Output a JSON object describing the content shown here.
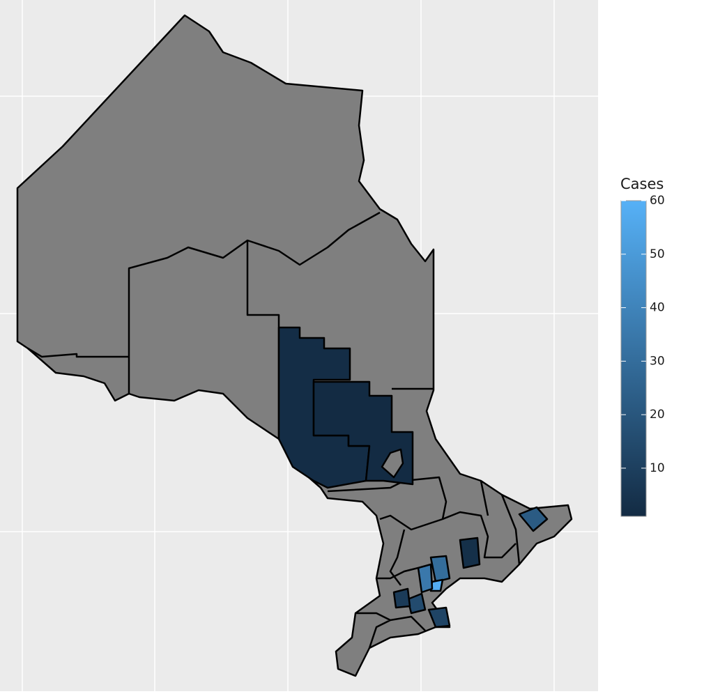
{
  "chart_data": {
    "type": "choropleth",
    "legend_title": "Cases",
    "clim": [
      1,
      60
    ],
    "cticks": [
      10,
      20,
      30,
      40,
      50,
      60
    ],
    "colorscale": [
      "#132b43",
      "#56b1f7"
    ],
    "missing_color": "#7f7f7f",
    "grid": true,
    "values": [
      2,
      1,
      22,
      3,
      30,
      58,
      35,
      15,
      12,
      8
    ]
  }
}
